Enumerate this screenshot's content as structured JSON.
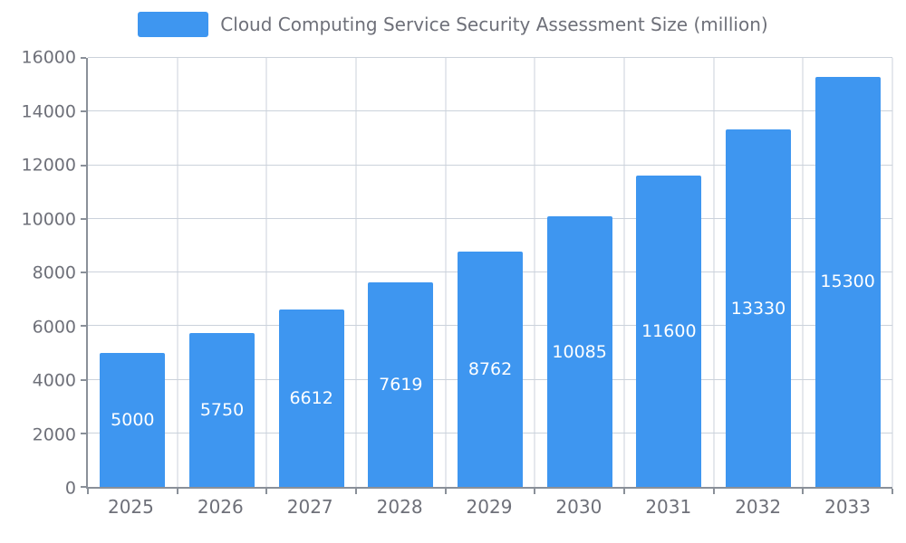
{
  "chart_data": {
    "type": "bar",
    "title": "Cloud Computing Service Security Assessment Size (million)",
    "categories": [
      "2025",
      "2026",
      "2027",
      "2028",
      "2029",
      "2030",
      "2031",
      "2032",
      "2033"
    ],
    "values": [
      5000,
      5750,
      6612,
      7619,
      8762,
      10085,
      11600,
      13330,
      15300
    ],
    "xlabel": "",
    "ylabel": "",
    "ylim": [
      0,
      16000
    ],
    "ytick_step": 2000,
    "yticks": [
      0,
      2000,
      4000,
      6000,
      8000,
      10000,
      12000,
      14000,
      16000
    ],
    "grid": true,
    "legend_position": "top",
    "value_labels": "inside-center",
    "colors": {
      "bar": "#3E96F0",
      "value_label": "#FFFFFF",
      "axis_text": "#6E7079",
      "grid": "#CBD2DB",
      "axis_line": "#8A9099",
      "background": "#FFFFFF"
    }
  }
}
